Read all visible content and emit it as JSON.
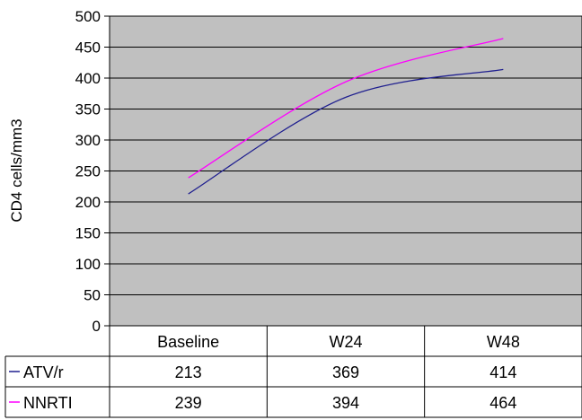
{
  "chart_data": {
    "type": "line",
    "categories": [
      "Baseline",
      "W24",
      "W48"
    ],
    "series": [
      {
        "name": "ATV/r",
        "values": [
          213,
          369,
          414
        ],
        "color": "#1f1f8f"
      },
      {
        "name": "NNRTI",
        "values": [
          239,
          394,
          464
        ],
        "color": "#ff00ff"
      }
    ],
    "ylabel": "CD4 cells/mm3",
    "ylim": [
      0,
      500
    ],
    "yticks": [
      "0",
      "50",
      "100",
      "150",
      "200",
      "250",
      "300",
      "350",
      "400",
      "450",
      "500"
    ],
    "grid": true,
    "legend": "data-table",
    "plot_background": "#c0c0c0"
  }
}
